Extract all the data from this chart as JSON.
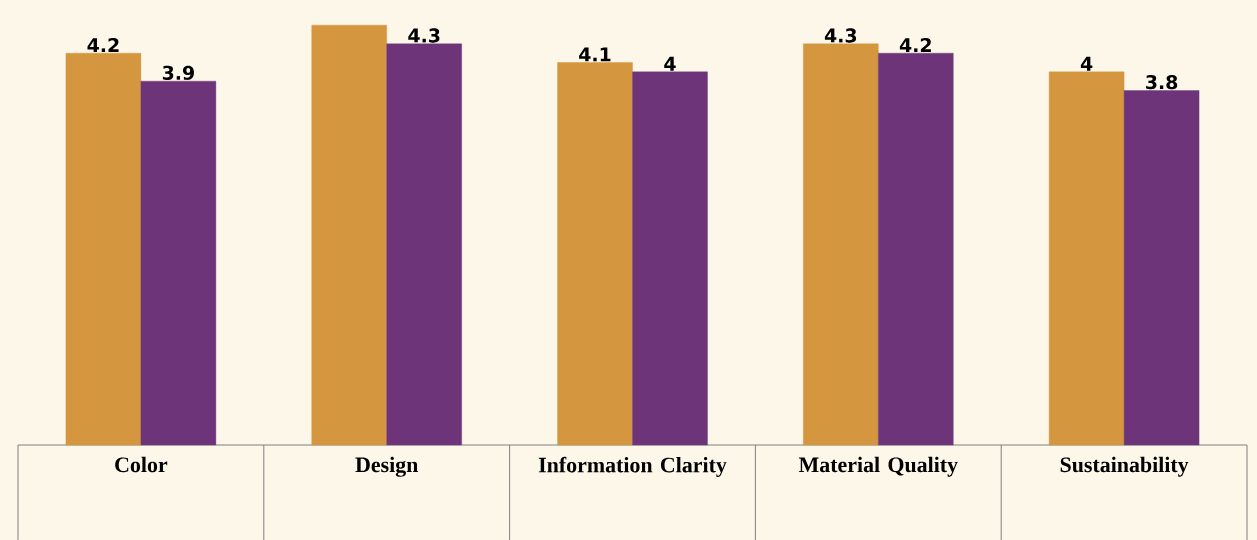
{
  "chart_data": {
    "type": "bar",
    "categories": [
      "Color",
      "Design",
      "Information Clarity",
      "Material Quality",
      "Sustainability"
    ],
    "series": [
      {
        "color": "#d4963e",
        "values": [
          4.2,
          4.5,
          4.1,
          4.3,
          4.0
        ],
        "value_labels": [
          "4.2",
          null,
          "4.1",
          "4.3",
          "4"
        ]
      },
      {
        "color": "#6e3479",
        "values": [
          3.9,
          4.3,
          4.0,
          4.2,
          3.8
        ],
        "value_labels": [
          "3.9",
          "4.3",
          "4",
          "4.2",
          "3.8"
        ]
      }
    ]
  }
}
